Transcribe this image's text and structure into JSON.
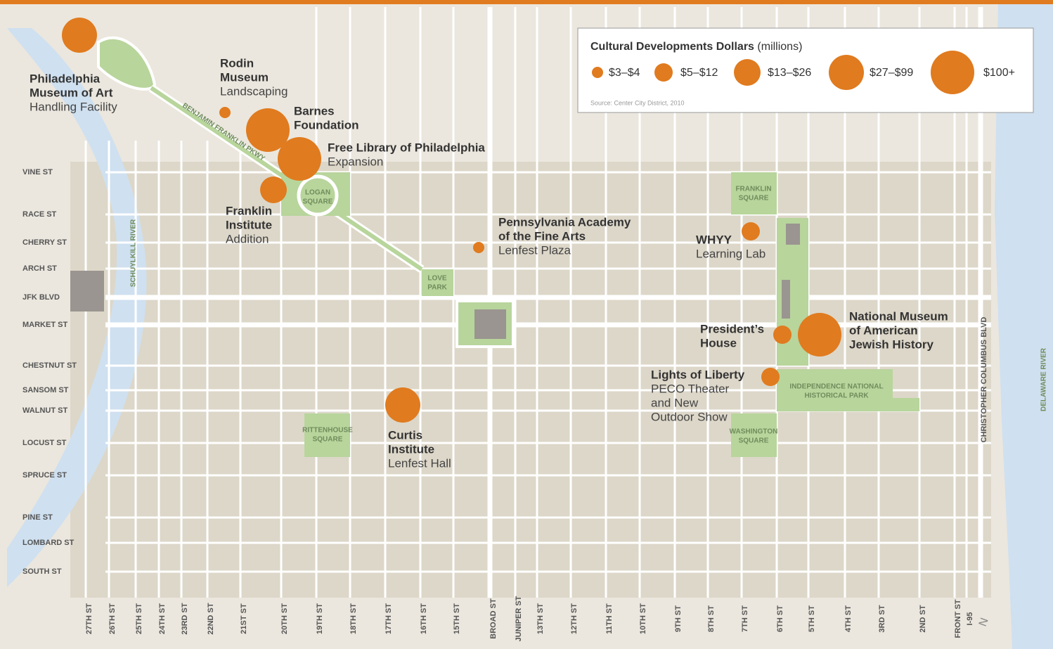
{
  "legend": {
    "title": "Cultural Developments Dollars",
    "unit": "(millions)",
    "items": [
      {
        "label": "$3–$4"
      },
      {
        "label": "$5–$12"
      },
      {
        "label": "$13–$26"
      },
      {
        "label": "$27–$99"
      },
      {
        "label": "$100+"
      }
    ],
    "source": "Source: Center City District, 2010"
  },
  "sites": [
    {
      "name": [
        "Philadelphia",
        "Museum of Art"
      ],
      "detail": [
        "Handling Facility"
      ],
      "range": "$27–$99"
    },
    {
      "name": [
        "Rodin",
        "Museum"
      ],
      "detail": [
        "Landscaping"
      ],
      "range": "$3–$4"
    },
    {
      "name": [
        "Barnes",
        "Foundation"
      ],
      "detail": [],
      "range": "$100+"
    },
    {
      "name": [
        "Free Library of Philadelphia"
      ],
      "detail": [
        "Expansion"
      ],
      "range": "$100+"
    },
    {
      "name": [
        "Franklin",
        "Institute"
      ],
      "detail": [
        "Addition"
      ],
      "range": "$13–$26"
    },
    {
      "name": [
        "Pennsylvania Academy",
        "of the Fine Arts"
      ],
      "detail": [
        "Lenfest Plaza"
      ],
      "range": "$3–$4"
    },
    {
      "name": [
        "WHYY"
      ],
      "detail": [
        "Learning Lab"
      ],
      "range": "$5–$12"
    },
    {
      "name": [
        "National Museum",
        "of American",
        "Jewish History"
      ],
      "detail": [],
      "range": "$100+"
    },
    {
      "name": [
        "President’s",
        "House"
      ],
      "detail": [],
      "range": "$5–$12"
    },
    {
      "name": [
        "Lights of Liberty"
      ],
      "detail": [
        "PECO Theater",
        "and New",
        "Outdoor Show"
      ],
      "range": "$5–$12"
    },
    {
      "name": [
        "Curtis",
        "Institute"
      ],
      "detail": [
        "Lenfest Hall"
      ],
      "range": "$27–$99"
    }
  ],
  "streets": {
    "east_west": [
      "VINE ST",
      "RACE ST",
      "CHERRY ST",
      "ARCH ST",
      "JFK BLVD",
      "MARKET ST",
      "CHESTNUT ST",
      "SANSOM ST",
      "WALNUT ST",
      "LOCUST ST",
      "SPRUCE ST",
      "PINE ST",
      "LOMBARD ST",
      "SOUTH ST"
    ],
    "north_south": [
      "27TH ST",
      "26TH ST",
      "25TH ST",
      "24TH ST",
      "23RD ST",
      "22ND ST",
      "21ST ST",
      "20TH ST",
      "19TH ST",
      "18TH ST",
      "17TH ST",
      "16TH ST",
      "15TH ST",
      "BROAD ST",
      "JUNIPER ST",
      "13TH ST",
      "12TH ST",
      "11TH ST",
      "10TH ST",
      "9TH ST",
      "8TH ST",
      "7TH ST",
      "6TH ST",
      "5TH ST",
      "4TH ST",
      "3RD ST",
      "2ND ST",
      "FRONT ST",
      "I-95",
      "CHRISTOPHER COLUMBUS BLVD"
    ]
  },
  "parks": [
    {
      "lines": [
        "LOGAN",
        "SQUARE"
      ]
    },
    {
      "lines": [
        "FRANKLIN",
        "SQUARE"
      ]
    },
    {
      "lines": [
        "LOVE",
        "PARK"
      ]
    },
    {
      "lines": [
        "RITTENHOUSE",
        "SQUARE"
      ]
    },
    {
      "lines": [
        "WASHINGTON",
        "SQUARE"
      ]
    },
    {
      "lines": [
        "INDEPENDENCE NATIONAL",
        "HISTORICAL PARK"
      ]
    }
  ],
  "parkway": "BENJAMIN FRANKLIN PKWY",
  "rivers": [
    "SCHUYLKILL RIVER",
    "DELAWARE RIVER"
  ],
  "north": "N"
}
